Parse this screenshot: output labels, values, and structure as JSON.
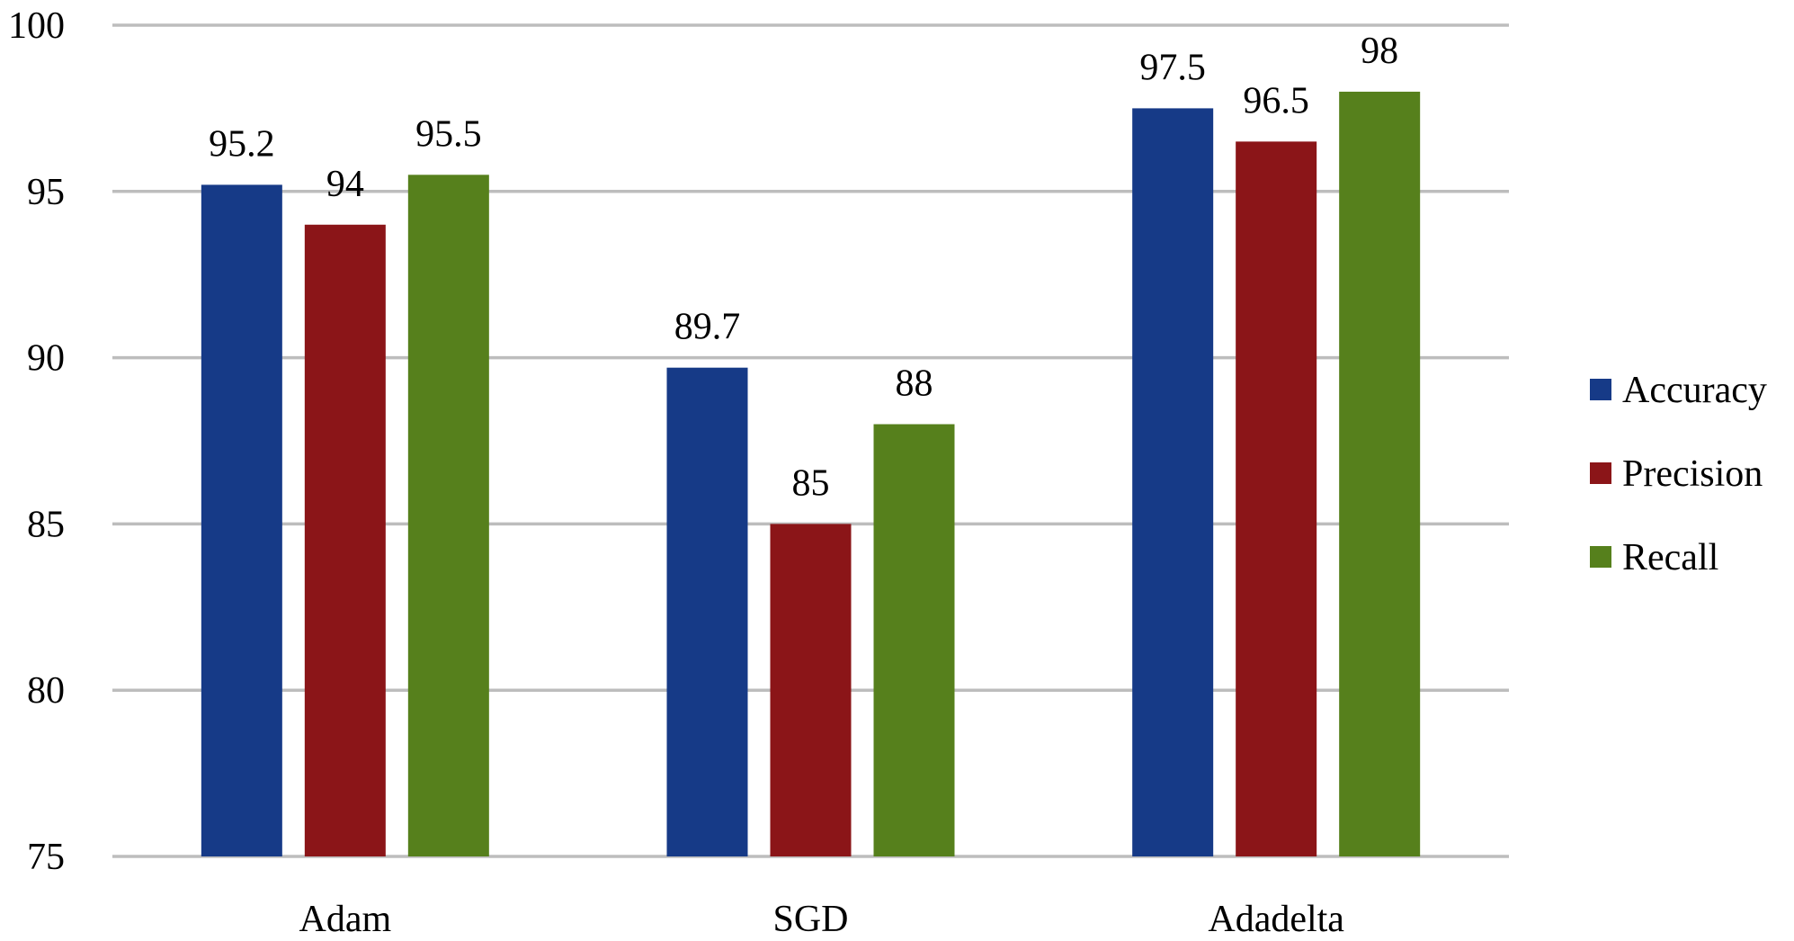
{
  "chart_data": {
    "type": "bar",
    "title": "",
    "xlabel": "",
    "ylabel": "",
    "ylim": [
      75,
      100
    ],
    "yticks": [
      "100",
      "95",
      "90",
      "85",
      "80",
      "75"
    ],
    "categories": [
      "Adam",
      "SGD",
      "Adadelta"
    ],
    "series": [
      {
        "name": "Accuracy",
        "color": "#163a87",
        "values": [
          95.2,
          89.7,
          97.5
        ],
        "labels": [
          "95.2",
          "89.7",
          "97.5"
        ]
      },
      {
        "name": "Precision",
        "color": "#8b1518",
        "values": [
          94,
          85,
          96.5
        ],
        "labels": [
          "94",
          "85",
          "96.5"
        ]
      },
      {
        "name": "Recall",
        "color": "#56801c",
        "values": [
          95.5,
          88,
          98
        ],
        "labels": [
          "95.5",
          "88",
          "98"
        ]
      }
    ],
    "grid": true,
    "legend_position": "right"
  }
}
